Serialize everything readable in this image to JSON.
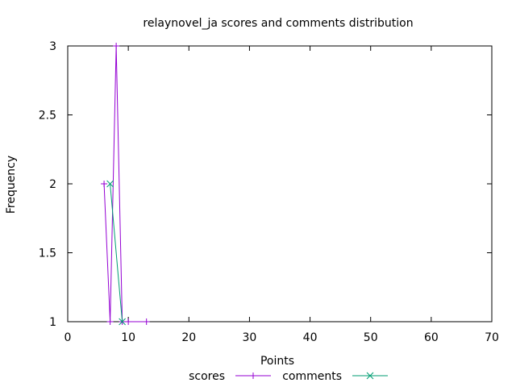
{
  "chart_data": {
    "type": "line",
    "title": "relaynovel_ja scores and comments distribution",
    "xlabel": "Points",
    "ylabel": "Frequency",
    "xlim": [
      0,
      70
    ],
    "ylim": [
      1,
      3
    ],
    "xticks": [
      0,
      10,
      20,
      30,
      40,
      50,
      60,
      70
    ],
    "yticks": [
      1,
      1.5,
      2,
      2.5,
      3
    ],
    "grid": false,
    "legend_position": "bottom-center",
    "series": [
      {
        "name": "scores",
        "color": "#9400d3",
        "marker": "plus",
        "points": [
          [
            6,
            2
          ],
          [
            7,
            1
          ],
          [
            8,
            3
          ],
          [
            9,
            1
          ],
          [
            10,
            1
          ],
          [
            13,
            1
          ]
        ]
      },
      {
        "name": "comments",
        "color": "#009e73",
        "marker": "cross",
        "points": [
          [
            7,
            2
          ],
          [
            9,
            1
          ]
        ]
      }
    ]
  }
}
